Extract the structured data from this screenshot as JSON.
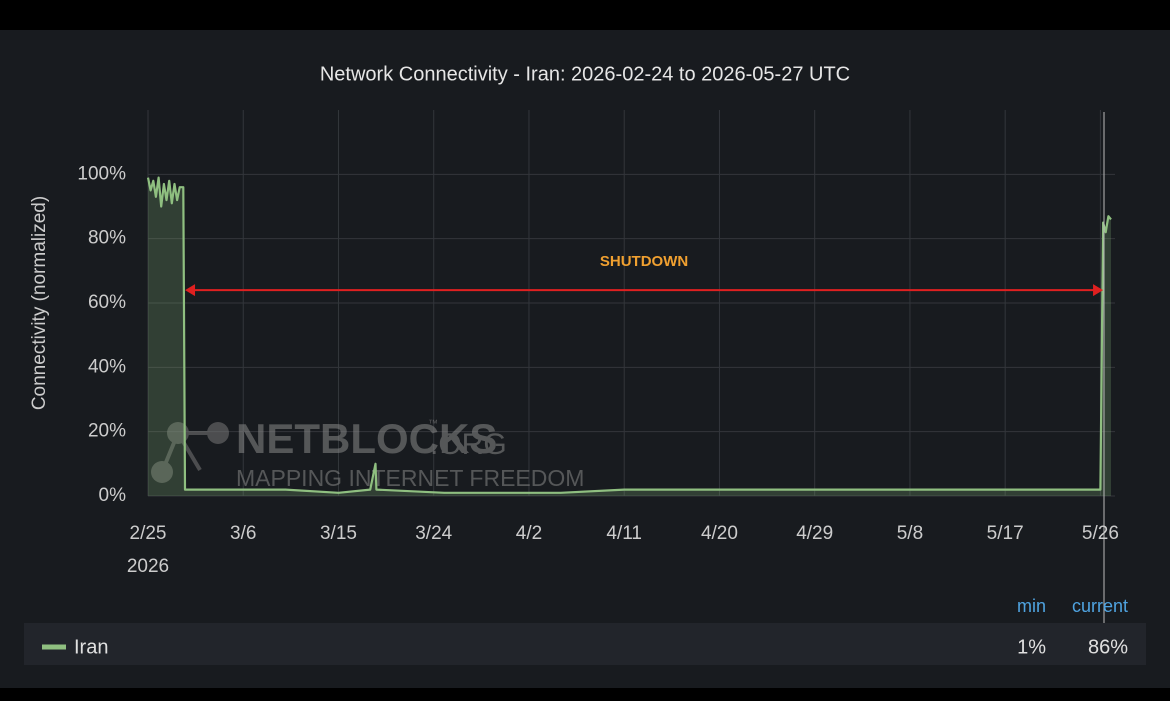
{
  "chart_data": {
    "type": "line",
    "title": "Network Connectivity - Iran: 2026-02-24 to 2026-05-27 UTC",
    "y_label": "Connectivity (normalized)",
    "x": [
      "2026-02-25T00:00",
      "2026-02-25T06:00",
      "2026-02-25T12:00",
      "2026-02-25T18:00",
      "2026-02-26T00:00",
      "2026-02-26T06:00",
      "2026-02-26T12:00",
      "2026-02-26T18:00",
      "2026-02-27T00:00",
      "2026-02-27T06:00",
      "2026-02-27T12:00",
      "2026-02-27T18:00",
      "2026-02-28T00:00",
      "2026-02-28T08:00",
      "2026-02-28T12:00",
      "2026-03-05T00:00",
      "2026-03-10T00:00",
      "2026-03-15T00:00",
      "2026-03-18T00:00",
      "2026-03-18T12:00",
      "2026-03-18T14:00",
      "2026-03-25T00:00",
      "2026-04-05T00:00",
      "2026-04-11T00:00",
      "2026-04-20T00:00",
      "2026-05-01T00:00",
      "2026-05-17T00:00",
      "2026-05-25T00:00",
      "2026-05-26T00:00",
      "2026-05-26T06:00",
      "2026-05-26T12:00",
      "2026-05-26T18:00",
      "2026-05-27T00:00"
    ],
    "series": [
      {
        "name": "Iran",
        "color": "#8fbf80",
        "values": [
          99,
          95,
          98,
          93,
          99,
          90,
          97,
          92,
          98,
          91,
          97,
          92,
          96,
          96,
          2,
          2,
          2,
          1,
          2,
          10,
          2,
          1,
          1,
          2,
          2,
          2,
          2,
          2,
          2,
          85,
          82,
          87,
          86
        ]
      }
    ],
    "xlim": [
      "2026-02-25T00:00",
      "2026-05-27T00:00"
    ],
    "xticks": [
      {
        "value": "2026-02-25T00:00",
        "label": "2/25",
        "sublabel": "2026"
      },
      {
        "value": "2026-03-06T00:00",
        "label": "3/6"
      },
      {
        "value": "2026-03-15T00:00",
        "label": "3/15"
      },
      {
        "value": "2026-03-24T00:00",
        "label": "3/24"
      },
      {
        "value": "2026-04-02T00:00",
        "label": "4/2"
      },
      {
        "value": "2026-04-11T00:00",
        "label": "4/11"
      },
      {
        "value": "2026-04-20T00:00",
        "label": "4/20"
      },
      {
        "value": "2026-04-29T00:00",
        "label": "4/29"
      },
      {
        "value": "2026-05-08T00:00",
        "label": "5/8"
      },
      {
        "value": "2026-05-17T00:00",
        "label": "5/17"
      },
      {
        "value": "2026-05-26T00:00",
        "label": "5/26"
      }
    ],
    "ylim": [
      0,
      120
    ],
    "yticks": [
      {
        "value": 0,
        "label": "0%"
      },
      {
        "value": 20,
        "label": "20%"
      },
      {
        "value": 40,
        "label": "40%"
      },
      {
        "value": 60,
        "label": "60%"
      },
      {
        "value": 80,
        "label": "80%"
      },
      {
        "value": 100,
        "label": "100%"
      }
    ],
    "grid": true,
    "annotation": {
      "text": "SHUTDOWN",
      "x_start": "2026-02-28T12:00",
      "x_end": "2026-05-26T06:00",
      "y": 64
    },
    "legend_stats": [
      {
        "name": "min",
        "value_label": "1%"
      },
      {
        "name": "current",
        "value_label": "86%"
      }
    ],
    "watermark": {
      "title": "NETBLOCKS",
      "trademark": "™",
      "suffix": ".ORG",
      "tagline": "MAPPING INTERNET FREEDOM"
    }
  }
}
